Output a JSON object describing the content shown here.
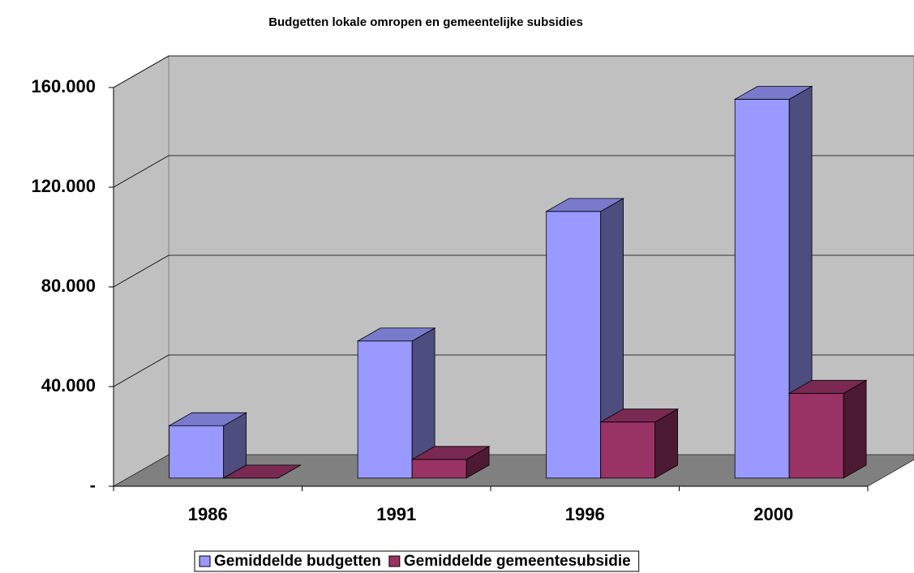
{
  "chart_data": {
    "type": "bar3d",
    "title": "Budgetten lokale omropen en gemeentelijke subsidies",
    "categories": [
      "1986",
      "1991",
      "1996",
      "2000"
    ],
    "series": [
      {
        "name": "Gemiddelde budgetten",
        "color": "#9999ff",
        "values": [
          21000,
          55000,
          107000,
          152000
        ]
      },
      {
        "name": "Gemiddelde gemeentesubsidie",
        "color": "#993366",
        "values": [
          0,
          7500,
          22500,
          34000
        ]
      }
    ],
    "ylim": [
      0,
      160000
    ],
    "yticks": [
      {
        "value": 0,
        "label": "-"
      },
      {
        "value": 40000,
        "label": "40.000"
      },
      {
        "value": 80000,
        "label": "80.000"
      },
      {
        "value": 120000,
        "label": "120.000"
      },
      {
        "value": 160000,
        "label": "160.000"
      }
    ],
    "grid": true,
    "legend": "bottom"
  }
}
